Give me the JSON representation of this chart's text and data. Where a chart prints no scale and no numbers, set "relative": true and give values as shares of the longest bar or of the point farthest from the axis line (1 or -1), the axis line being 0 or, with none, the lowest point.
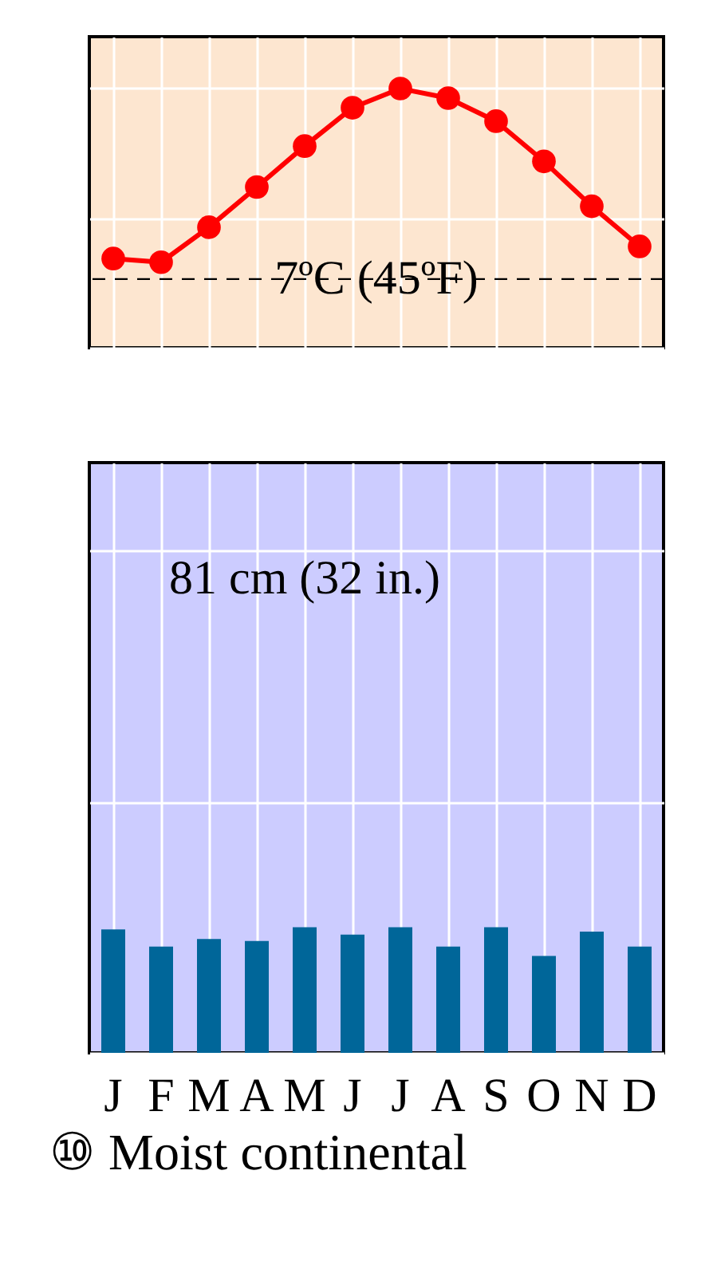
{
  "chart_data": [
    {
      "type": "line",
      "relative": true,
      "categories": [
        null,
        null,
        null,
        null,
        null,
        null,
        null,
        null,
        null,
        null,
        null,
        null
      ],
      "series": [
        {
          "color": "#ff0000",
          "values": [
            0.344,
            0.33,
            0.465,
            0.62,
            0.778,
            0.926,
            1,
            0.963,
            0.874,
            0.719,
            0.546,
            0.391
          ]
        }
      ],
      "marker": "circle",
      "grid": true,
      "tick_labels": false,
      "ref_lines": [
        {
          "axis": "y",
          "value": 0.265,
          "label": "7ºC (45ºF)",
          "color": "#000000",
          "line_style": "dashed"
        }
      ]
    },
    {
      "type": "bar",
      "relative": true,
      "categories": [
        "J",
        "F",
        "M",
        "A",
        "M",
        "J",
        "J",
        "A",
        "S",
        "O",
        "N",
        "D"
      ],
      "series": [
        {
          "color": "#006699",
          "values": [
            0.983,
            0.847,
            0.907,
            0.89,
            1,
            0.941,
            1,
            0.847,
            1,
            0.771,
            0.966,
            0.847
          ]
        }
      ],
      "grid": true,
      "tick_labels": "x",
      "annotations": [
        "81 cm (32 in.)",
        "⑩ Moist continental"
      ]
    }
  ]
}
